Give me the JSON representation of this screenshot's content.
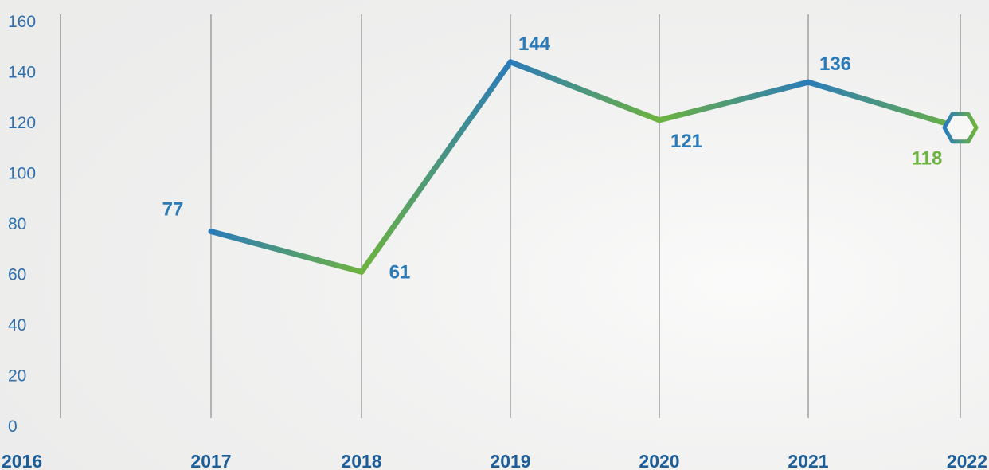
{
  "chart_data": {
    "type": "line",
    "categories": [
      "2016",
      "2017",
      "2018",
      "2019",
      "2020",
      "2021",
      "2022"
    ],
    "x": [
      "2017",
      "2018",
      "2019",
      "2020",
      "2021",
      "2022"
    ],
    "values": [
      77,
      61,
      144,
      121,
      136,
      118
    ],
    "data_labels": [
      "77",
      "61",
      "144",
      "121",
      "136",
      "118"
    ],
    "y_ticks": [
      "0",
      "20",
      "40",
      "60",
      "80",
      "100",
      "120",
      "140",
      "160"
    ],
    "ylim": [
      0,
      160
    ],
    "title": "",
    "xlabel": "",
    "ylabel": "",
    "grid": "vertical",
    "legend": "none",
    "end_marker": "hexagon",
    "colors": {
      "blue": "#2b7bb9",
      "green": "#6db33f",
      "tick_text": "#2f6fae",
      "year_text": "#1f5f99",
      "gridline": "#9a9a9a",
      "background": "#f4f4f3"
    }
  }
}
